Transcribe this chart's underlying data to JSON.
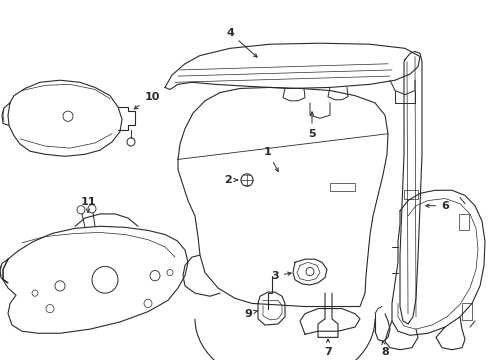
{
  "bg_color": "#ffffff",
  "line_color": "#2a2a2a",
  "lw": 0.8,
  "figsize": [
    4.89,
    3.6
  ],
  "dpi": 100
}
